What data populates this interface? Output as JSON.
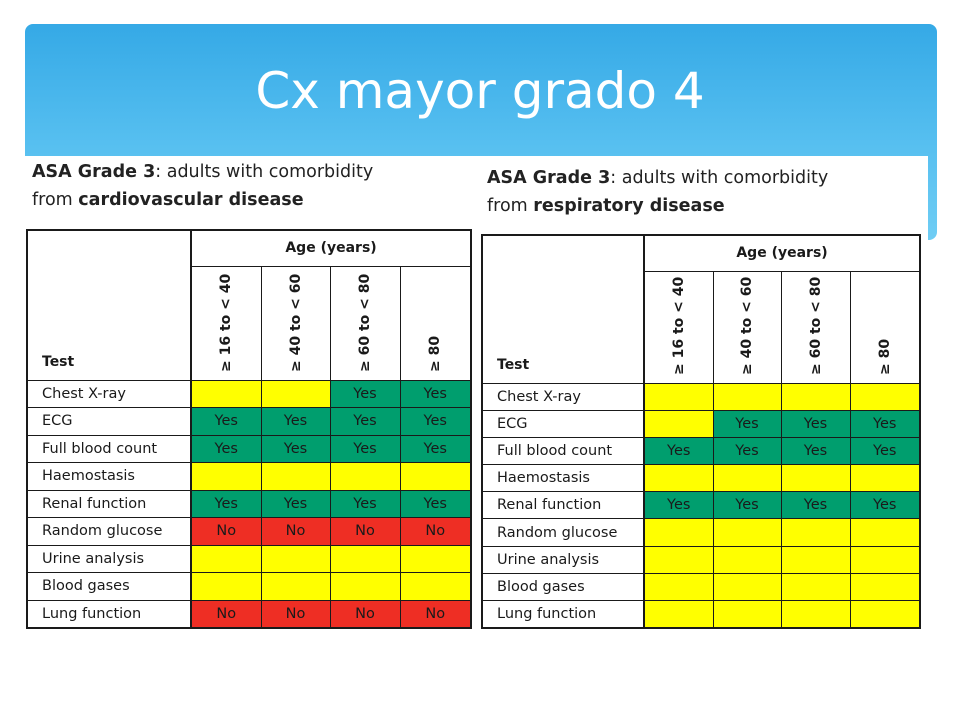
{
  "slide": {
    "title": "Cx mayor grado 4"
  },
  "colors": {
    "banner": "#44b6ee",
    "yellow": "#ffff00",
    "green": "#009e6e",
    "red": "#ee2e24"
  },
  "tables": [
    {
      "caption_grade": "ASA Grade 3",
      "caption_mid": ": adults with comorbidity",
      "caption_from": "from ",
      "caption_disease": "cardiovascular disease",
      "age_header": "Age (years)",
      "test_header": "Test",
      "age_groups": [
        "≥ 16 to < 40",
        "≥ 40 to < 60",
        "≥ 60 to < 80",
        "≥ 80"
      ],
      "rows": [
        {
          "test": "Chest X-ray",
          "cells": [
            {
              "v": "",
              "c": "yellow"
            },
            {
              "v": "",
              "c": "yellow"
            },
            {
              "v": "Yes",
              "c": "green"
            },
            {
              "v": "Yes",
              "c": "green"
            }
          ]
        },
        {
          "test": "ECG",
          "cells": [
            {
              "v": "Yes",
              "c": "green"
            },
            {
              "v": "Yes",
              "c": "green"
            },
            {
              "v": "Yes",
              "c": "green"
            },
            {
              "v": "Yes",
              "c": "green"
            }
          ]
        },
        {
          "test": "Full blood count",
          "cells": [
            {
              "v": "Yes",
              "c": "green"
            },
            {
              "v": "Yes",
              "c": "green"
            },
            {
              "v": "Yes",
              "c": "green"
            },
            {
              "v": "Yes",
              "c": "green"
            }
          ]
        },
        {
          "test": "Haemostasis",
          "cells": [
            {
              "v": "",
              "c": "yellow"
            },
            {
              "v": "",
              "c": "yellow"
            },
            {
              "v": "",
              "c": "yellow"
            },
            {
              "v": "",
              "c": "yellow"
            }
          ]
        },
        {
          "test": "Renal function",
          "cells": [
            {
              "v": "Yes",
              "c": "green"
            },
            {
              "v": "Yes",
              "c": "green"
            },
            {
              "v": "Yes",
              "c": "green"
            },
            {
              "v": "Yes",
              "c": "green"
            }
          ]
        },
        {
          "test": "Random glucose",
          "cells": [
            {
              "v": "No",
              "c": "red"
            },
            {
              "v": "No",
              "c": "red"
            },
            {
              "v": "No",
              "c": "red"
            },
            {
              "v": "No",
              "c": "red"
            }
          ]
        },
        {
          "test": "Urine analysis",
          "cells": [
            {
              "v": "",
              "c": "yellow"
            },
            {
              "v": "",
              "c": "yellow"
            },
            {
              "v": "",
              "c": "yellow"
            },
            {
              "v": "",
              "c": "yellow"
            }
          ]
        },
        {
          "test": "Blood gases",
          "cells": [
            {
              "v": "",
              "c": "yellow"
            },
            {
              "v": "",
              "c": "yellow"
            },
            {
              "v": "",
              "c": "yellow"
            },
            {
              "v": "",
              "c": "yellow"
            }
          ]
        },
        {
          "test": "Lung function",
          "cells": [
            {
              "v": "No",
              "c": "red"
            },
            {
              "v": "No",
              "c": "red"
            },
            {
              "v": "No",
              "c": "red"
            },
            {
              "v": "No",
              "c": "red"
            }
          ]
        }
      ]
    },
    {
      "caption_grade": "ASA Grade 3",
      "caption_mid": ": adults with comorbidity",
      "caption_from": "from ",
      "caption_disease": "respiratory disease",
      "age_header": "Age (years)",
      "test_header": "Test",
      "age_groups": [
        "≥ 16 to < 40",
        "≥ 40 to < 60",
        "≥ 60 to < 80",
        "≥ 80"
      ],
      "rows": [
        {
          "test": "Chest X-ray",
          "cells": [
            {
              "v": "",
              "c": "yellow"
            },
            {
              "v": "",
              "c": "yellow"
            },
            {
              "v": "",
              "c": "yellow"
            },
            {
              "v": "",
              "c": "yellow"
            }
          ]
        },
        {
          "test": "ECG",
          "cells": [
            {
              "v": "",
              "c": "yellow"
            },
            {
              "v": "Yes",
              "c": "green"
            },
            {
              "v": "Yes",
              "c": "green"
            },
            {
              "v": "Yes",
              "c": "green"
            }
          ]
        },
        {
          "test": "Full blood count",
          "cells": [
            {
              "v": "Yes",
              "c": "green"
            },
            {
              "v": "Yes",
              "c": "green"
            },
            {
              "v": "Yes",
              "c": "green"
            },
            {
              "v": "Yes",
              "c": "green"
            }
          ]
        },
        {
          "test": "Haemostasis",
          "cells": [
            {
              "v": "",
              "c": "yellow"
            },
            {
              "v": "",
              "c": "yellow"
            },
            {
              "v": "",
              "c": "yellow"
            },
            {
              "v": "",
              "c": "yellow"
            }
          ]
        },
        {
          "test": "Renal function",
          "cells": [
            {
              "v": "Yes",
              "c": "green"
            },
            {
              "v": "Yes",
              "c": "green"
            },
            {
              "v": "Yes",
              "c": "green"
            },
            {
              "v": "Yes",
              "c": "green"
            }
          ]
        },
        {
          "test": "Random glucose",
          "cells": [
            {
              "v": "",
              "c": "yellow"
            },
            {
              "v": "",
              "c": "yellow"
            },
            {
              "v": "",
              "c": "yellow"
            },
            {
              "v": "",
              "c": "yellow"
            }
          ]
        },
        {
          "test": "Urine analysis",
          "cells": [
            {
              "v": "",
              "c": "yellow"
            },
            {
              "v": "",
              "c": "yellow"
            },
            {
              "v": "",
              "c": "yellow"
            },
            {
              "v": "",
              "c": "yellow"
            }
          ]
        },
        {
          "test": "Blood gases",
          "cells": [
            {
              "v": "",
              "c": "yellow"
            },
            {
              "v": "",
              "c": "yellow"
            },
            {
              "v": "",
              "c": "yellow"
            },
            {
              "v": "",
              "c": "yellow"
            }
          ]
        },
        {
          "test": "Lung function",
          "cells": [
            {
              "v": "",
              "c": "yellow"
            },
            {
              "v": "",
              "c": "yellow"
            },
            {
              "v": "",
              "c": "yellow"
            },
            {
              "v": "",
              "c": "yellow"
            }
          ]
        }
      ]
    }
  ]
}
